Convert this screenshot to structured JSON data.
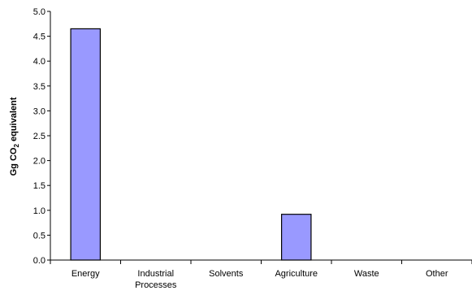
{
  "chart_data": {
    "type": "bar",
    "categories": [
      "Energy",
      "Industrial Processes",
      "Solvents",
      "Agriculture",
      "Waste",
      "Other"
    ],
    "category_lines": [
      [
        "Energy"
      ],
      [
        "Industrial",
        "Processes"
      ],
      [
        "Solvents"
      ],
      [
        "Agriculture"
      ],
      [
        "Waste"
      ],
      [
        "Other"
      ]
    ],
    "values": [
      4.65,
      0,
      0,
      0.92,
      0,
      0
    ],
    "ylabel": "Gg CO2 equivalent",
    "ylabel_parts": {
      "main": "Gg CO",
      "subscript": "2",
      "rest": " equivalent"
    },
    "ylim": [
      0,
      5.0
    ],
    "yticks": [
      "0.0",
      "0.5",
      "1.0",
      "1.5",
      "2.0",
      "2.5",
      "3.0",
      "3.5",
      "4.0",
      "4.5",
      "5.0"
    ],
    "grid": false,
    "legend": "none",
    "bar_color": "#9999ff",
    "bar_edge_color": "#000000"
  }
}
